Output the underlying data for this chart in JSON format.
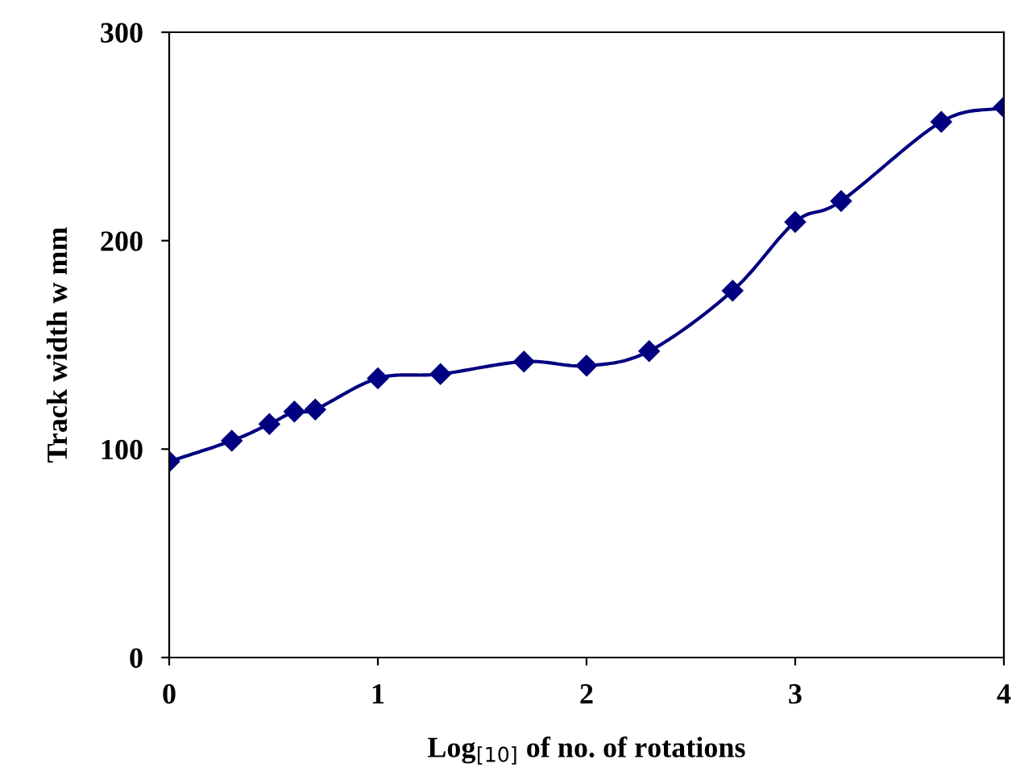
{
  "chart_data": {
    "type": "line",
    "xlabel": "Log$_{[10]}$ of no. of rotations",
    "ylabel": "Track width w mm",
    "x": [
      0,
      0.3,
      0.48,
      0.6,
      0.7,
      1.0,
      1.3,
      1.7,
      2.0,
      2.3,
      2.7,
      3.0,
      3.22,
      3.7,
      4.0
    ],
    "series": [
      {
        "color": "#000080",
        "values": [
          94,
          104,
          112,
          118,
          119,
          134,
          136,
          142,
          140,
          147,
          176,
          209,
          219,
          257,
          264
        ]
      }
    ],
    "xlim": [
      0,
      4
    ],
    "xticks": [
      0,
      1,
      2,
      3,
      4
    ],
    "ylim": [
      0,
      300
    ],
    "yticks": [
      0,
      100,
      200,
      300
    ],
    "marker": "diamond",
    "line_style": "solid",
    "grid": false,
    "legend": false
  }
}
